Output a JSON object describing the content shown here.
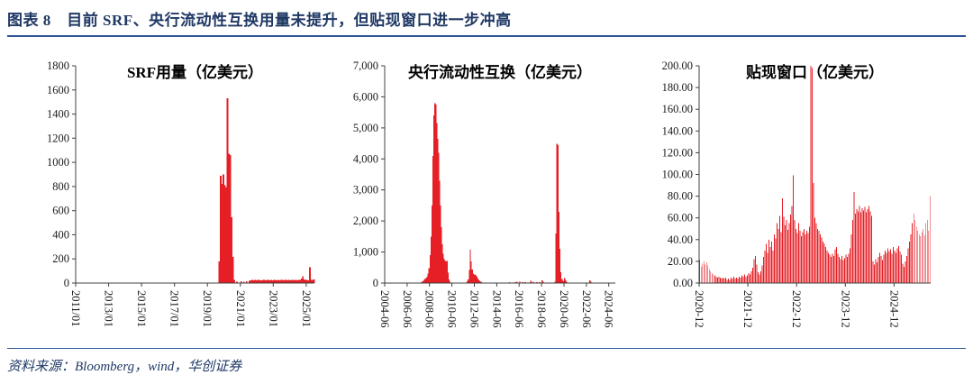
{
  "header": {
    "title": "图表 8　目前 SRF、央行流动性互换用量未提升，但贴现窗口进一步冲高"
  },
  "footer": {
    "source": "资料来源：Bloomberg，wind，华创证券"
  },
  "colors": {
    "bar_red": "#e61e25",
    "navy_text": "#1f3864",
    "rule_blue": "#2f5597",
    "axis_gray": "#404040"
  },
  "chart_data": [
    {
      "type": "bar",
      "title": "SRF用量（亿美元）",
      "ylabel": "",
      "xlabel": "",
      "grid": false,
      "legend": "none",
      "ylim": [
        0,
        1800
      ],
      "ytick_step": 200,
      "ytick_labels": [
        "0",
        "200",
        "400",
        "600",
        "800",
        "1000",
        "1200",
        "1400",
        "1600",
        "1800"
      ],
      "x_start": "2011-01",
      "x_freq": "monthly",
      "xtick_labels": [
        "2011/01",
        "2013/01",
        "2015/01",
        "2017/01",
        "2019/01",
        "2021/01",
        "2023/01",
        "2025/01"
      ],
      "xtick_indices": [
        0,
        24,
        48,
        72,
        96,
        120,
        144,
        168
      ],
      "bar_gap": false,
      "values": [
        0,
        0,
        0,
        0,
        0,
        0,
        0,
        0,
        0,
        0,
        0,
        0,
        0,
        0,
        0,
        0,
        0,
        0,
        0,
        0,
        0,
        0,
        0,
        0,
        0,
        0,
        0,
        0,
        0,
        0,
        0,
        0,
        0,
        0,
        0,
        0,
        0,
        0,
        0,
        0,
        0,
        0,
        0,
        0,
        0,
        0,
        0,
        0,
        0,
        0,
        0,
        0,
        0,
        0,
        0,
        0,
        0,
        0,
        0,
        0,
        0,
        0,
        0,
        0,
        0,
        0,
        0,
        0,
        0,
        0,
        0,
        0,
        0,
        0,
        0,
        0,
        0,
        0,
        0,
        0,
        0,
        0,
        0,
        0,
        0,
        0,
        0,
        0,
        0,
        0,
        0,
        0,
        0,
        0,
        0,
        0,
        0,
        0,
        0,
        0,
        0,
        0,
        0,
        0,
        180,
        890,
        820,
        900,
        810,
        790,
        1530,
        1070,
        1060,
        545,
        215,
        25,
        0,
        12,
        0,
        0,
        15,
        0,
        12,
        0,
        14,
        0,
        18,
        22,
        25,
        24,
        26,
        23,
        25,
        27,
        24,
        22,
        26,
        25,
        23,
        27,
        25,
        24,
        26,
        22,
        25,
        28,
        24,
        26,
        23,
        25,
        27,
        24,
        26,
        25,
        22,
        26,
        24,
        27,
        25,
        23,
        26,
        24,
        28,
        25,
        38,
        55,
        30,
        28,
        25,
        24,
        130,
        28,
        26,
        30
      ]
    },
    {
      "type": "bar",
      "title": "央行流动性互换（亿美元）",
      "ylabel": "",
      "xlabel": "",
      "grid": false,
      "legend": "none",
      "ylim": [
        0,
        7000
      ],
      "ytick_step": 1000,
      "ytick_labels": [
        "0",
        "1,000",
        "2,000",
        "3,000",
        "4,000",
        "5,000",
        "6,000",
        "7,000"
      ],
      "x_start": "2004-06",
      "x_freq": "monthly",
      "xtick_labels": [
        "2004-06",
        "2006-06",
        "2008-06",
        "2010-06",
        "2012-06",
        "2014-06",
        "2016-06",
        "2018-06",
        "2020-06",
        "2022-06",
        "2024-06"
      ],
      "xtick_indices": [
        0,
        24,
        48,
        72,
        96,
        120,
        144,
        168,
        192,
        216,
        240
      ],
      "bar_gap": false,
      "values": [
        0,
        0,
        0,
        0,
        0,
        0,
        0,
        0,
        0,
        0,
        0,
        0,
        0,
        0,
        0,
        0,
        0,
        0,
        0,
        0,
        0,
        0,
        0,
        0,
        0,
        0,
        0,
        0,
        0,
        0,
        0,
        0,
        0,
        0,
        0,
        0,
        0,
        0,
        0,
        30,
        60,
        80,
        120,
        150,
        160,
        210,
        300,
        480,
        900,
        1500,
        2500,
        4100,
        5400,
        5800,
        5750,
        5150,
        4650,
        4200,
        3300,
        2500,
        1800,
        1250,
        950,
        780,
        720,
        690,
        710,
        340,
        120,
        45,
        15,
        0,
        0,
        0,
        0,
        0,
        0,
        0,
        0,
        0,
        0,
        0,
        0,
        0,
        0,
        0,
        0,
        0,
        60,
        120,
        420,
        1080,
        690,
        440,
        300,
        260,
        280,
        250,
        200,
        150,
        100,
        70,
        50,
        40,
        20,
        0,
        0,
        0,
        0,
        0,
        0,
        0,
        0,
        0,
        0,
        0,
        0,
        0,
        0,
        0,
        0,
        0,
        0,
        0,
        0,
        0,
        0,
        0,
        0,
        0,
        0,
        0,
        0,
        25,
        0,
        15,
        0,
        0,
        0,
        30,
        0,
        45,
        0,
        20,
        60,
        15,
        0,
        25,
        0,
        10,
        30,
        0,
        15,
        20,
        0,
        10,
        70,
        30,
        0,
        40,
        10,
        0,
        30,
        0,
        15,
        35,
        0,
        20,
        90,
        50,
        15,
        20,
        0,
        10,
        0,
        0,
        0,
        0,
        0,
        0,
        0,
        0,
        40,
        1600,
        4490,
        4450,
        2300,
        1100,
        350,
        130,
        80,
        60,
        160,
        90,
        40,
        15,
        0,
        0,
        0,
        0,
        0,
        0,
        0,
        0,
        0,
        0,
        0,
        0,
        0,
        0,
        0,
        0,
        0,
        0,
        0,
        0,
        0,
        0,
        20,
        85,
        45,
        15,
        0,
        0,
        0,
        0,
        0,
        0,
        0,
        0,
        0,
        0,
        0,
        0,
        0,
        0,
        0,
        0,
        0,
        0,
        0,
        0,
        0,
        0,
        0,
        0,
        0
      ]
    },
    {
      "type": "bar",
      "title": "贴现窗口（亿美元）",
      "ylabel": "",
      "xlabel": "",
      "grid": false,
      "legend": "none",
      "ylim": [
        0,
        200
      ],
      "ytick_step": 20,
      "ytick_labels": [
        "0.00",
        "20.00",
        "40.00",
        "60.00",
        "80.00",
        "100.00",
        "120.00",
        "140.00",
        "160.00",
        "180.00",
        "200.00"
      ],
      "x_start": "2020-12",
      "x_freq": "approx-weekly (3 per month)",
      "xtick_labels": [
        "2020-12",
        "2021-12",
        "2022-12",
        "2023-12",
        "2024-12"
      ],
      "xtick_indices": [
        0,
        36,
        72,
        108,
        144
      ],
      "bar_gap": true,
      "values": [
        21,
        15,
        18,
        20,
        17,
        19,
        16,
        13,
        11,
        9,
        8,
        7,
        6,
        5,
        6,
        5,
        4,
        5,
        4,
        5,
        3,
        4,
        3,
        5,
        4,
        6,
        4,
        5,
        4,
        6,
        5,
        7,
        6,
        8,
        6,
        7,
        9,
        8,
        11,
        14,
        22,
        25,
        17,
        10,
        8,
        11,
        16,
        24,
        30,
        36,
        28,
        40,
        33,
        38,
        30,
        45,
        41,
        55,
        50,
        62,
        47,
        78,
        61,
        53,
        58,
        49,
        55,
        63,
        71,
        99,
        58,
        50,
        46,
        55,
        48,
        43,
        47,
        50,
        45,
        48,
        46,
        52,
        200,
        198,
        92,
        60,
        55,
        50,
        48,
        45,
        42,
        38,
        36,
        33,
        30,
        28,
        26,
        24,
        27,
        25,
        31,
        33,
        27,
        24,
        22,
        25,
        21,
        23,
        26,
        24,
        27,
        32,
        45,
        58,
        84,
        64,
        68,
        66,
        71,
        65,
        69,
        67,
        70,
        65,
        68,
        71,
        66,
        62,
        20,
        17,
        22,
        19,
        24,
        28,
        25,
        21,
        26,
        30,
        28,
        32,
        29,
        31,
        27,
        33,
        30,
        28,
        32,
        34,
        29,
        26,
        18,
        15,
        20,
        25,
        32,
        38,
        45,
        55,
        64,
        58,
        52,
        48,
        45,
        43,
        47,
        50,
        44,
        55,
        58,
        48,
        80
      ]
    }
  ]
}
